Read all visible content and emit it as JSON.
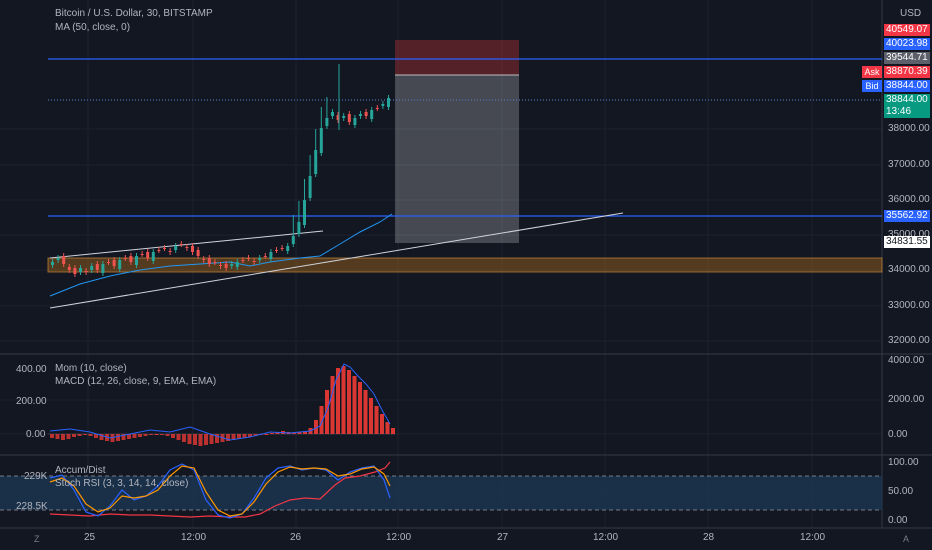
{
  "header": {
    "title": "Bitcoin / U.S. Dollar, 30, BITSTAMP",
    "ma_label": "MA (50, close, 0)",
    "currency": "USD"
  },
  "price_tags": [
    {
      "label": "40549.07",
      "color": "#f23645"
    },
    {
      "label": "40023.98",
      "color": "#2962ff"
    },
    {
      "label": "39544.71",
      "color": "#5d606b"
    },
    {
      "label": "38870.39",
      "color": "#f23645"
    },
    {
      "label": "38844.00",
      "color": "#2962ff"
    },
    {
      "label": "38844.00",
      "color": "#089981"
    },
    {
      "label": "13:46",
      "color": "#089981"
    },
    {
      "label": "35562.92",
      "color": "#2962ff"
    },
    {
      "label": "34831.55",
      "color": "#ffffff"
    }
  ],
  "ask_bid": {
    "ask": "Ask",
    "bid": "Bid"
  },
  "price_axis": [
    "38000.00",
    "37000.00",
    "36000.00",
    "35000.00",
    "34000.00",
    "33000.00",
    "32000.00"
  ],
  "momentum_panel": {
    "title": "Mom (10, close)",
    "macd_title": "MACD (12, 26, close, 9, EMA, EMA)",
    "left_axis": [
      "400.00",
      "200.00",
      "0.00"
    ],
    "right_axis": [
      "4000.00",
      "2000.00",
      "0.00"
    ]
  },
  "oscillator_panel": {
    "title": "Accum/Dist",
    "stoch_title": "Stoch RSI (3, 3, 14, 14, close)",
    "left_axis": [
      "229K",
      "228.5K"
    ],
    "right_axis": [
      "100.00",
      "50.00",
      "0.00"
    ]
  },
  "time_axis": [
    "25",
    "12:00",
    "26",
    "12:00",
    "27",
    "12:00",
    "28",
    "12:00"
  ],
  "corners": {
    "left": "Z",
    "right": "A"
  },
  "colors": {
    "background": "#131722",
    "up": "#26a69a",
    "down": "#ef5350",
    "level_line": "#2962ff",
    "accent": "#2962ff"
  }
}
